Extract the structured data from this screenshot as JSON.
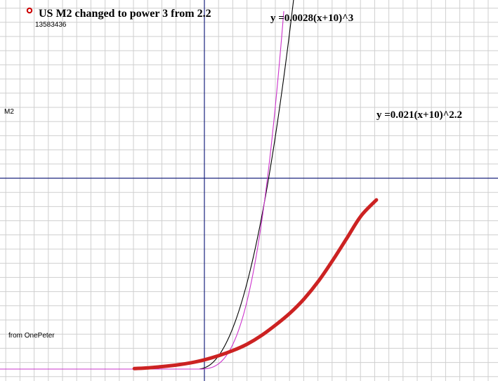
{
  "chart_data": {
    "type": "line",
    "title": "US M2 changed to power 3 from 2.2",
    "id_label": "13583436",
    "ylabel": "M2",
    "credit": "from OnePeter",
    "grid": true,
    "legend_marker_color": "#cc0000",
    "series": [
      {
        "name": "US M2",
        "color": "#cc2222",
        "points": [
          [
            -64,
            0.15
          ],
          [
            -51,
            0.4
          ],
          [
            -38,
            0.8
          ],
          [
            -25,
            1.3
          ],
          [
            -12,
            2.0
          ],
          [
            0,
            2.9
          ],
          [
            13,
            4.2
          ],
          [
            26,
            5.8
          ],
          [
            39,
            7.8
          ],
          [
            52,
            10.5
          ],
          [
            65,
            13.8
          ],
          [
            78,
            17.5
          ],
          [
            91,
            22.0
          ],
          [
            104,
            27.5
          ],
          [
            117,
            34.0
          ],
          [
            130,
            41.0
          ],
          [
            143,
            48.0
          ],
          [
            157,
            53.0
          ]
        ]
      },
      {
        "name": "y =0.0028(x+10)^3",
        "formula": "0.0028*(x+10)^3",
        "color": "#cc33cc",
        "annotation": "y =0.0028(x+10)^3"
      },
      {
        "name": "y =0.021(x+10)^2.2",
        "formula": "0.021*(x+10)^2.2",
        "color": "#000000",
        "annotation": "y =0.021(x+10)^2.2"
      }
    ]
  }
}
